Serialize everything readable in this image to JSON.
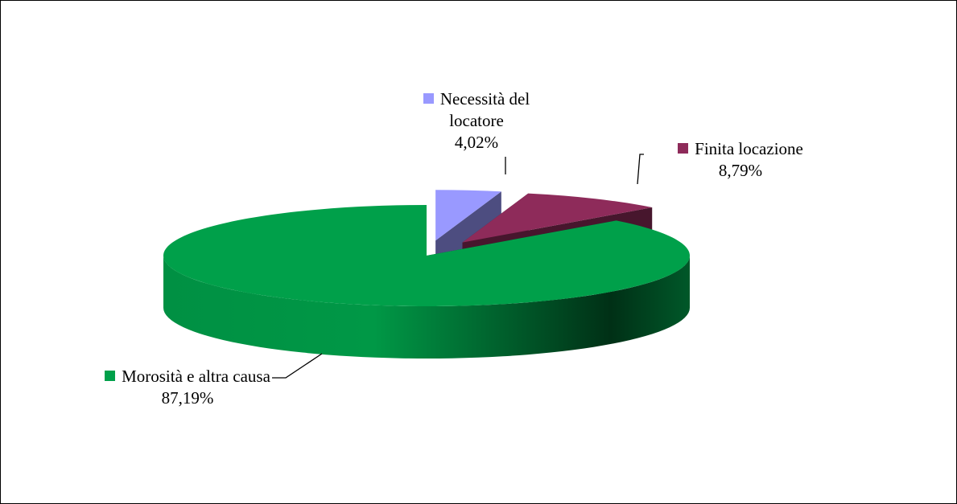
{
  "chart_data": {
    "type": "pie3d",
    "categories": [
      "Necessità del locatore",
      "Finita locazione",
      "Morosità e altra causa"
    ],
    "values": [
      4.02,
      8.79,
      87.19
    ],
    "value_labels": [
      "4,02%",
      "8,79%",
      "87,19%"
    ],
    "colors": [
      "#9999ff",
      "#8e2b5a",
      "#00a04a"
    ]
  }
}
